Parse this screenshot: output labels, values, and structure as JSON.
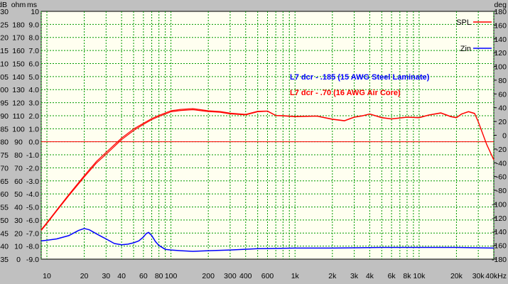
{
  "chart_data": {
    "type": "line",
    "x_scale": "log",
    "x_unit": "Hz",
    "xlim": [
      9,
      40000
    ],
    "x_ticks": [
      {
        "v": 10,
        "t": "10"
      },
      {
        "v": 20,
        "t": "20"
      },
      {
        "v": 30,
        "t": "30"
      },
      {
        "v": 40,
        "t": "40"
      },
      {
        "v": 60,
        "t": "60"
      },
      {
        "v": 80,
        "t": "80"
      },
      {
        "v": 100,
        "t": "100"
      },
      {
        "v": 200,
        "t": "200"
      },
      {
        "v": 300,
        "t": "300"
      },
      {
        "v": 400,
        "t": "400"
      },
      {
        "v": 600,
        "t": "600"
      },
      {
        "v": 1000,
        "t": "1k"
      },
      {
        "v": 2000,
        "t": "2k"
      },
      {
        "v": 3000,
        "t": "3k"
      },
      {
        "v": 4000,
        "t": "4k"
      },
      {
        "v": 6000,
        "t": "6k"
      },
      {
        "v": 8000,
        "t": "8k"
      },
      {
        "v": 10000,
        "t": "10k"
      },
      {
        "v": 20000,
        "t": "20k"
      },
      {
        "v": 30000,
        "t": "30k"
      },
      {
        "v": 40000,
        "t": "40kHz"
      }
    ],
    "y_axes": {
      "db": {
        "unit": "dB",
        "range": [
          35,
          130
        ],
        "ticks": [
          "130",
          "125",
          "120",
          "115",
          "110",
          "105",
          "100",
          "95",
          "90",
          "85",
          "80",
          "75",
          "70",
          "65",
          "60",
          "55",
          "50",
          "45",
          "40",
          "35"
        ]
      },
      "ohm": {
        "unit": "ohm",
        "range": [
          0,
          190
        ],
        "ticks": [
          "180",
          "170",
          "160",
          "150",
          "140",
          "130",
          "120",
          "110",
          "100",
          "90",
          "80",
          "70",
          "60",
          "50",
          "40",
          "30",
          "20",
          "10",
          "0"
        ]
      },
      "ms": {
        "unit": "ms",
        "range": [
          -9,
          10
        ],
        "ticks": [
          "10",
          "9.0",
          "8.0",
          "7.0",
          "6.0",
          "5.0",
          "4.0",
          "3.0",
          "2.0",
          "1.0",
          "0.0",
          "-1.0",
          "-2.0",
          "-3.0",
          "-4.0",
          "-5.0",
          "-6.0",
          "-7.0",
          "-8.0",
          "-9.0"
        ]
      },
      "deg": {
        "unit": "deg",
        "range": [
          -180,
          180
        ],
        "ticks": [
          "180",
          "160",
          "140",
          "120",
          "100",
          "80",
          "60",
          "40",
          "20",
          "0",
          "-20",
          "-40",
          "-60",
          "-80",
          "-100",
          "-120",
          "-140",
          "-160",
          "-180"
        ]
      }
    },
    "reference_line": {
      "axis": "db",
      "value": 80,
      "color": "#ff0000"
    },
    "legend": {
      "position": "top-right",
      "entries": [
        {
          "label": "SPL",
          "color": "#ff0000"
        },
        {
          "label": "Zin",
          "color": "#0000ff"
        }
      ]
    },
    "annotations": [
      {
        "text": "L7 dcr - .185 (15 AWG Steel Laminate)",
        "color": "#0000ff"
      },
      {
        "text": "L7 dcr - .70 (16 AWG Air Core)",
        "color": "#ff0000"
      }
    ],
    "series": [
      {
        "label": "SPL",
        "axis": "db",
        "color": "#ff0000",
        "x": [
          9,
          10,
          12,
          15,
          20,
          25,
          30,
          40,
          50,
          60,
          70,
          80,
          100,
          120,
          150,
          200,
          250,
          300,
          400,
          500,
          600,
          700,
          800,
          1000,
          1500,
          2000,
          2500,
          3000,
          3500,
          4000,
          5000,
          6000,
          8000,
          10000,
          12000,
          15000,
          18000,
          20000,
          22000,
          25000,
          28000,
          30000,
          35000,
          40000
        ],
        "y": [
          46,
          48.7,
          53.5,
          59.3,
          66.5,
          71.8,
          75.2,
          80.8,
          84.3,
          86.7,
          88.5,
          89.7,
          91.5,
          92.0,
          92.3,
          91.6,
          91.3,
          90.7,
          90.3,
          91.5,
          91.7,
          90.0,
          89.9,
          89.6,
          89.8,
          88.6,
          88.0,
          89.4,
          89.9,
          90.6,
          89.2,
          88.7,
          89.4,
          89.2,
          90.2,
          91.0,
          89.6,
          89.2,
          90.6,
          91.5,
          90.8,
          87.6,
          79.0,
          73.0
        ]
      },
      {
        "label": "SPL (air core)",
        "axis": "db",
        "color": "#ff0000",
        "x": [
          9,
          10,
          12,
          15,
          20,
          25,
          30,
          40,
          50,
          60,
          70,
          80,
          100,
          120,
          150,
          200,
          250,
          300,
          400,
          500,
          600,
          700,
          800,
          1000,
          1500,
          2000,
          2500,
          3000,
          3500,
          4000,
          5000,
          6000,
          8000,
          10000,
          12000,
          15000,
          18000,
          20000,
          22000,
          25000,
          28000,
          30000,
          35000,
          40000
        ],
        "y": [
          46.3,
          49,
          53.8,
          59.7,
          67,
          72.4,
          75.9,
          81.4,
          84.9,
          87.1,
          88.9,
          90.1,
          91.9,
          92.4,
          92.7,
          91.9,
          91.6,
          91.0,
          90.5,
          91.7,
          91.8,
          90.1,
          90.0,
          89.7,
          89.9,
          88.7,
          88.1,
          89.5,
          90.0,
          90.7,
          89.3,
          88.8,
          89.5,
          89.3,
          90.3,
          91.1,
          89.7,
          89.3,
          90.7,
          91.6,
          90.9,
          87.7,
          79.1,
          73.1
        ]
      },
      {
        "label": "Zin",
        "axis": "ohm",
        "color": "#0000ff",
        "x": [
          9,
          10,
          12,
          15,
          18,
          20,
          22,
          25,
          28,
          30,
          35,
          40,
          45,
          50,
          55,
          60,
          63,
          66,
          70,
          75,
          80,
          90,
          100,
          120,
          150,
          200,
          300,
          500,
          1000,
          2000,
          5000,
          10000,
          20000,
          40000
        ],
        "y": [
          14,
          14.5,
          15.5,
          18,
          22,
          23.5,
          22.5,
          19.5,
          17,
          15.5,
          12,
          11,
          11.5,
          12.5,
          14,
          17,
          19.5,
          20.5,
          18,
          13.5,
          10.5,
          7.5,
          7,
          6.5,
          6,
          6.5,
          7,
          8,
          8.5,
          8.5,
          9,
          9,
          9,
          8.5
        ]
      }
    ]
  }
}
